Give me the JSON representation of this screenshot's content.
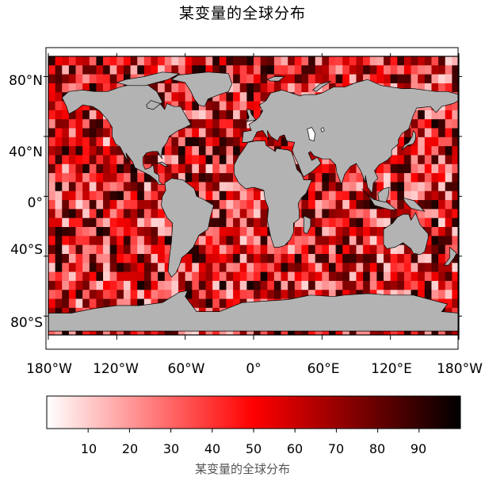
{
  "title": "某变量的全球分布",
  "map": {
    "projection": "equirectangular",
    "lat_range": [
      -90,
      90
    ],
    "lon_range": [
      -180,
      180
    ],
    "land_color": "#b3b3b3",
    "coastline_color": "#000000",
    "grid_cell_degrees": 6,
    "lat_ticks": [
      "80°N",
      "40°N",
      "0°",
      "40°S",
      "80°S"
    ],
    "lat_values": [
      80,
      40,
      0,
      -40,
      -80
    ],
    "lon_ticks": [
      "180°W",
      "120°W",
      "60°W",
      "0°",
      "60°E",
      "120°E",
      "180°W"
    ],
    "lon_values": [
      -180,
      -120,
      -60,
      0,
      60,
      120,
      180
    ]
  },
  "colorbar": {
    "title": "某变量的全球分布",
    "range": [
      0,
      100
    ],
    "ticks": [
      "10",
      "20",
      "30",
      "40",
      "50",
      "60",
      "70",
      "80",
      "90"
    ],
    "tick_values": [
      10,
      20,
      30,
      40,
      50,
      60,
      70,
      80,
      90
    ],
    "colors": [
      "#ffffff",
      "#ff0000",
      "#000000"
    ]
  }
}
